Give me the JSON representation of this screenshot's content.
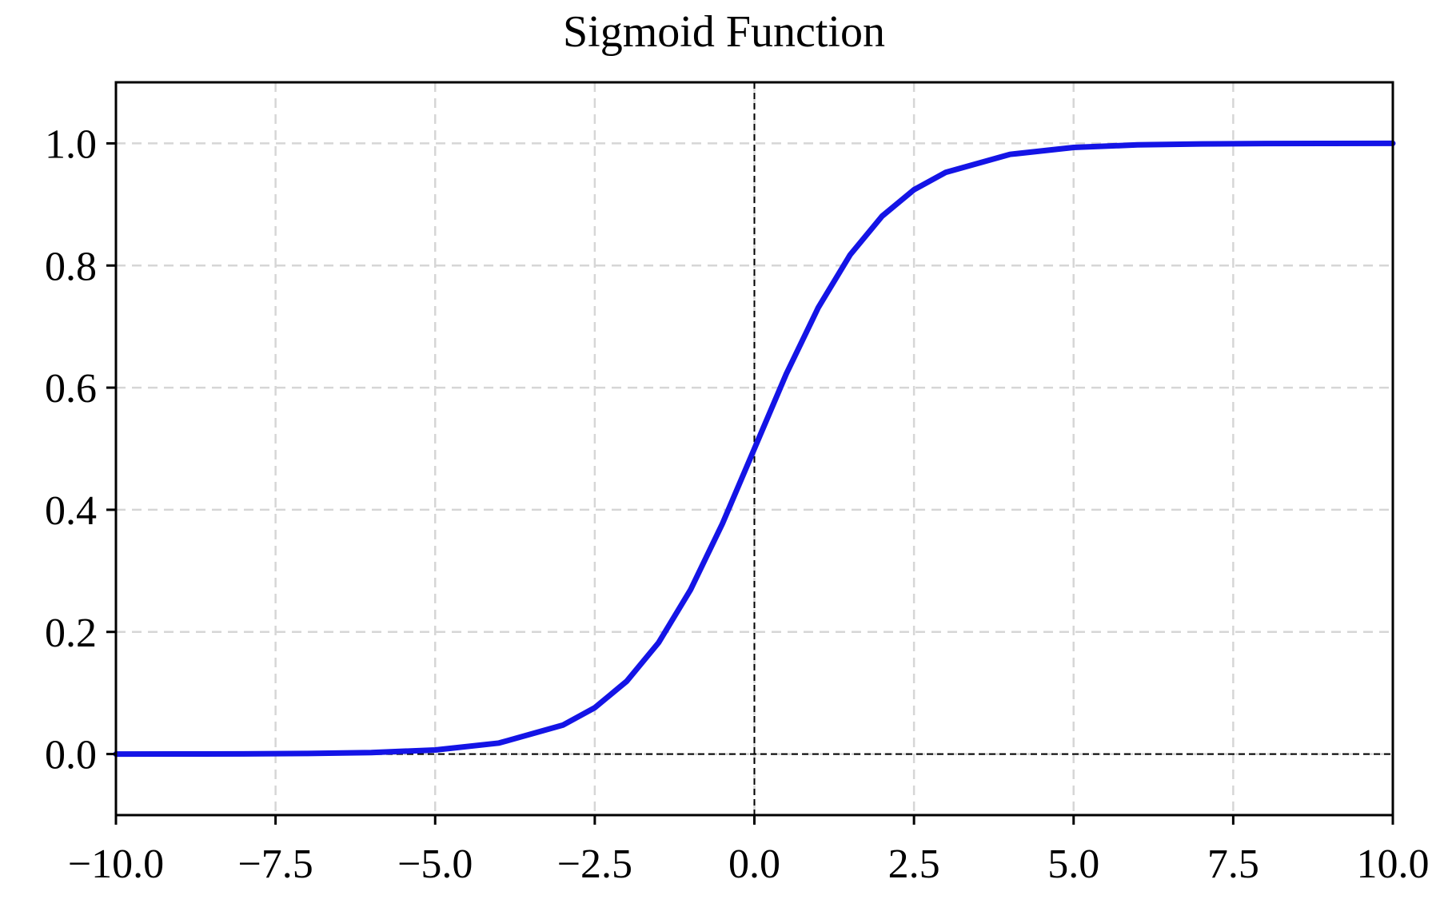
{
  "chart_data": {
    "type": "line",
    "title": "Sigmoid Function",
    "xlabel": "",
    "ylabel": "",
    "xlim": [
      -10,
      10
    ],
    "ylim": [
      -0.1,
      1.1
    ],
    "x_ticks": [
      -10.0,
      -7.5,
      -5.0,
      -2.5,
      0.0,
      2.5,
      5.0,
      7.5,
      10.0
    ],
    "x_tick_labels": [
      "−10.0",
      "−7.5",
      "−5.0",
      "−2.5",
      "0.0",
      "2.5",
      "5.0",
      "7.5",
      "10.0"
    ],
    "y_ticks": [
      0.0,
      0.2,
      0.4,
      0.6,
      0.8,
      1.0
    ],
    "y_tick_labels": [
      "0.0",
      "0.2",
      "0.4",
      "0.6",
      "0.8",
      "1.0"
    ],
    "grid": true,
    "reference_lines": [
      {
        "orientation": "vertical",
        "value": 0
      },
      {
        "orientation": "horizontal",
        "value": 0
      }
    ],
    "series": [
      {
        "color": "#1414e6",
        "x": [
          -10,
          -9,
          -8,
          -7,
          -6,
          -5,
          -4,
          -3,
          -2.5,
          -2,
          -1.5,
          -1,
          -0.5,
          0,
          0.5,
          1,
          1.5,
          2,
          2.5,
          3,
          4,
          5,
          6,
          7,
          8,
          9,
          10
        ],
        "y": [
          0.0,
          0.0001,
          0.0003,
          0.0009,
          0.0025,
          0.0067,
          0.018,
          0.0474,
          0.0759,
          0.1192,
          0.1824,
          0.2689,
          0.3775,
          0.5,
          0.6225,
          0.7311,
          0.8176,
          0.8808,
          0.9241,
          0.9526,
          0.982,
          0.9933,
          0.9975,
          0.9991,
          0.9997,
          0.9999,
          1.0
        ]
      }
    ]
  }
}
